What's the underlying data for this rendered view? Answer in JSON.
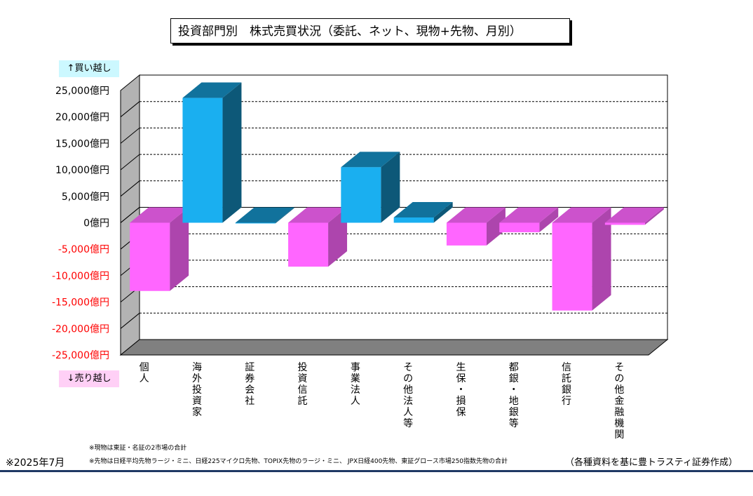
{
  "title": "投資部門別　株式売買状況（委託、ネット、現物+先物、月別）",
  "tag_buy": "↑買い越し",
  "tag_sell": "↓売り越し",
  "notes": [
    "※現物は東証・名証の2市場の合計",
    "※先物は日経平均先物ラージ・ミニ、日経225マイクロ先物、TOPIX先物のラージ・ミニ、 JPX日経400先物、東証グロース市場250指数先物の合計"
  ],
  "date": "※2025年7月",
  "source": "（各種資料を基に豊トラスティ証券作成）",
  "colors": {
    "positive": "#1aaff0",
    "negative": "#ff66ff",
    "negative_axis_labels": "#ff0000",
    "wall": "#b3b3b3",
    "floor": "#808080"
  },
  "chart_data": {
    "type": "bar",
    "title": "投資部門別　株式売買状況（委託、ネット、現物+先物、月別）",
    "ylabel": "",
    "ylim": [
      -25000,
      25000
    ],
    "yunit": "億円",
    "yticks": [
      "25,000億円",
      "20,000億円",
      "15,000億円",
      "10,000億円",
      "5,000億円",
      "0億円",
      "-5,000億円",
      "-10,000億円",
      "-15,000億円",
      "-20,000億円",
      "-25,000億円"
    ],
    "ytick_values": [
      25000,
      20000,
      15000,
      10000,
      5000,
      0,
      -5000,
      -10000,
      -15000,
      -20000,
      -25000
    ],
    "categories": [
      "個人",
      "海外投資家",
      "証券会社",
      "投資信託",
      "事業法人",
      "その他法人等",
      "生保・損保",
      "都銀・地銀等",
      "信託銀行",
      "その他金融機関"
    ],
    "values": [
      -12900,
      23600,
      0,
      -8300,
      10500,
      1000,
      -4300,
      -1800,
      -16600,
      -400
    ],
    "grid": true
  }
}
